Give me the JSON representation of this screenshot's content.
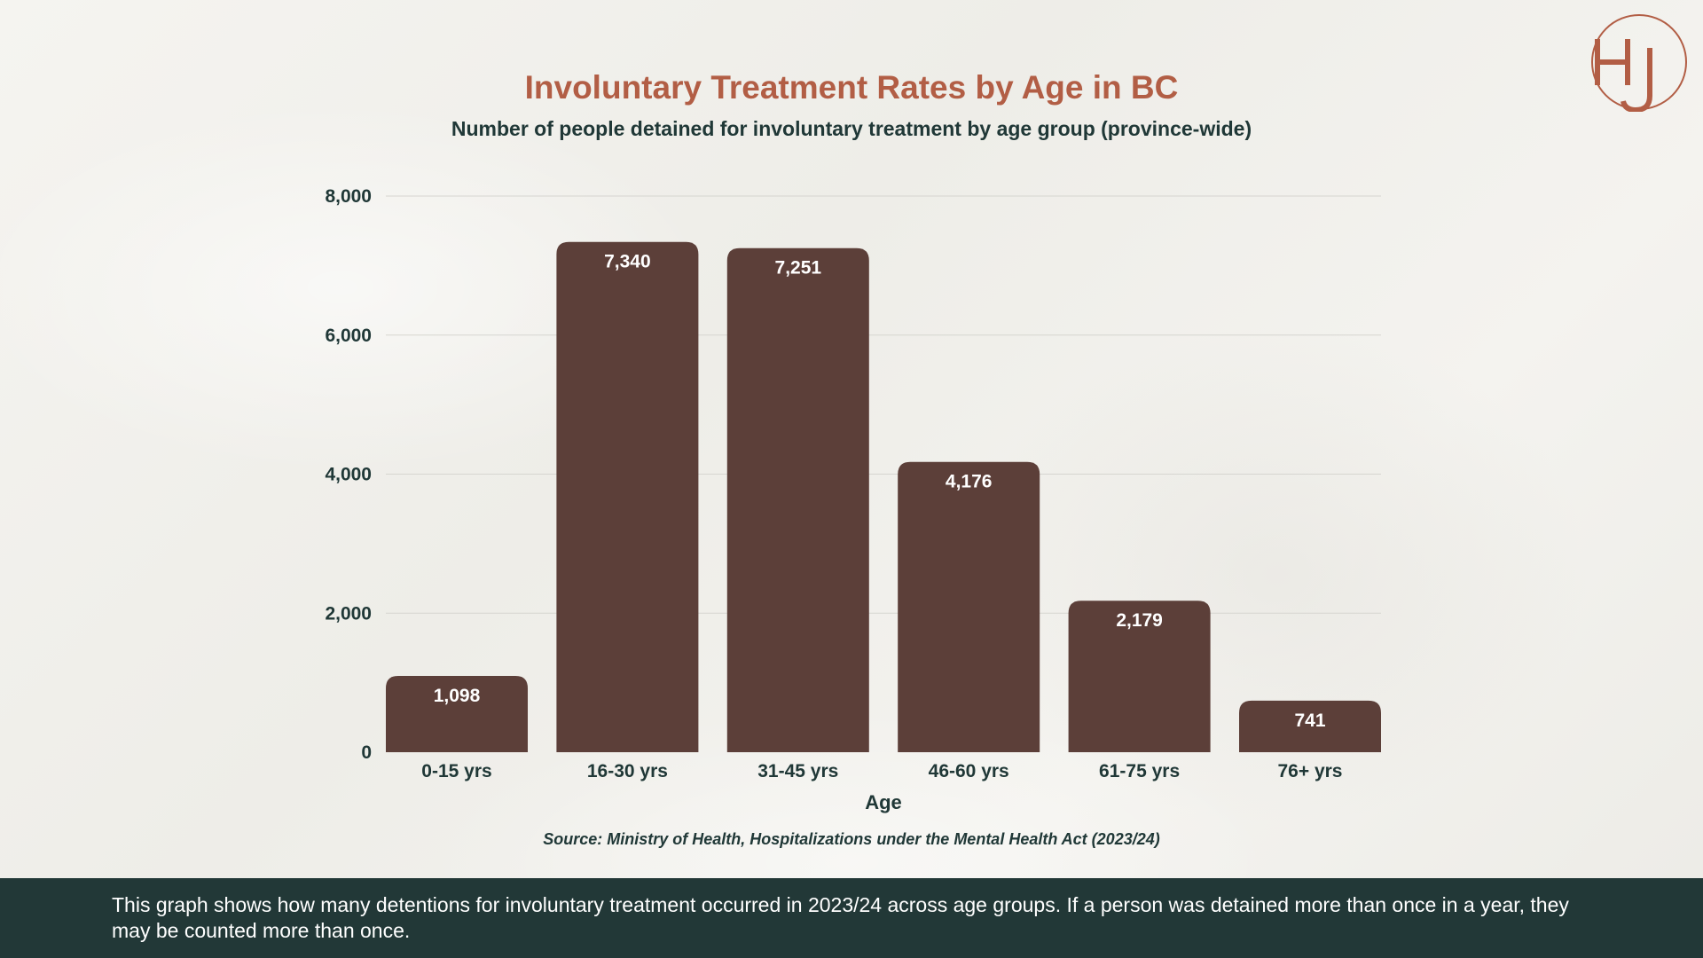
{
  "title": "Involuntary Treatment Rates by Age in BC",
  "subtitle": "Number of people detained for involuntary treatment by age group (province-wide)",
  "source": "Source: Ministry of Health, Hospitalizations under the Mental Health Act (2023/24)",
  "footer_note": "This graph shows how many detentions for involuntary treatment occurred in 2023/24 across age groups. If a person was detained more than once in a year, they may be counted more than once.",
  "logo_text": "HJ",
  "colors": {
    "title": "#b25e45",
    "bar": "#5c3f39",
    "text": "#203837",
    "footer_bg": "#223837",
    "logo": "#b25e45"
  },
  "chart_data": {
    "type": "bar",
    "title": "Involuntary Treatment Rates by Age in BC",
    "subtitle": "Number of people detained for involuntary treatment by age group (province-wide)",
    "xlabel": "Age",
    "ylabel": "",
    "categories": [
      "0-15 yrs",
      "16-30 yrs",
      "31-45 yrs",
      "46-60 yrs",
      "61-75 yrs",
      "76+ yrs"
    ],
    "values": [
      1098,
      7340,
      7251,
      4176,
      2179,
      741
    ],
    "value_labels": [
      "1,098",
      "7,340",
      "7,251",
      "4,176",
      "2,179",
      "741"
    ],
    "ylim": [
      0,
      8000
    ],
    "yticks": [
      0,
      2000,
      4000,
      6000,
      8000
    ],
    "ytick_labels": [
      "0",
      "2,000",
      "4,000",
      "6,000",
      "8,000"
    ],
    "grid": true,
    "legend": "none"
  }
}
